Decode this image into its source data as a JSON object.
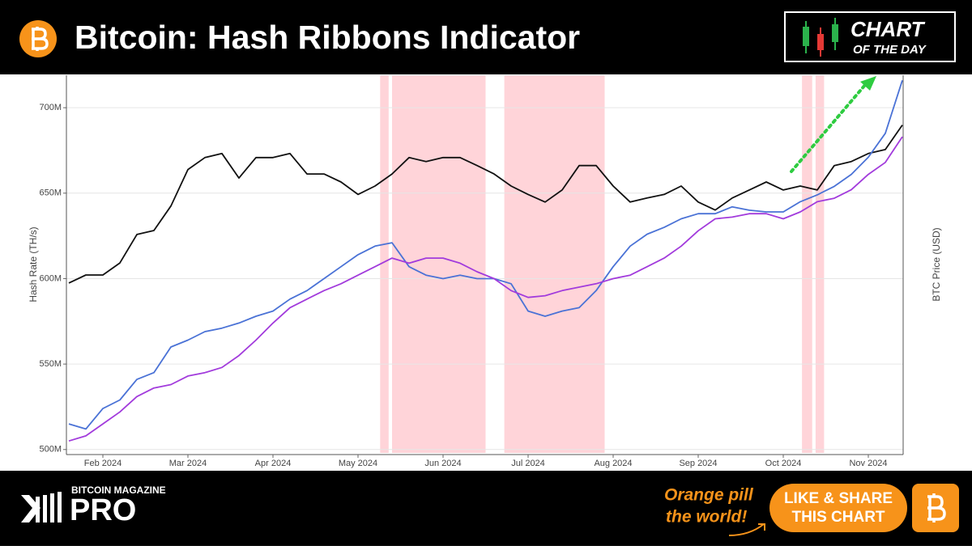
{
  "header": {
    "title": "Bitcoin: Hash Ribbons Indicator",
    "badge_line1": "CHART",
    "badge_line2": "OF THE DAY"
  },
  "footer": {
    "brand_small": "BITCOIN MAGAZINE",
    "brand_large": "PRO",
    "slogan_line1": "Orange pill",
    "slogan_line2": "the world!",
    "button_line1": "LIKE & SHARE",
    "button_line2": "THIS CHART"
  },
  "chart_data": {
    "type": "line",
    "y_label": "Hash Rate (TH/s)",
    "y2_label": "BTC Price (USD)",
    "categories": [
      null,
      null,
      "Feb 2024",
      null,
      null,
      null,
      null,
      "Mar 2024",
      null,
      null,
      null,
      null,
      "Apr 2024",
      null,
      null,
      null,
      null,
      "May 2024",
      null,
      null,
      null,
      null,
      "Jun 2024",
      null,
      null,
      null,
      null,
      "Jul 2024",
      null,
      null,
      null,
      null,
      "Aug 2024",
      null,
      null,
      null,
      null,
      "Sep 2024",
      null,
      null,
      null,
      null,
      "Oct 2024",
      null,
      null,
      null,
      null,
      "Nov 2024",
      null,
      null
    ],
    "series": [
      {
        "color": "#111111",
        "axis": "y2",
        "values": [
          43000,
          44800,
          44800,
          47500,
          53900,
          54800,
          60300,
          68500,
          71200,
          72100,
          66600,
          71200,
          71200,
          72100,
          67500,
          67500,
          65700,
          62900,
          64800,
          67500,
          71200,
          70300,
          71200,
          71200,
          69400,
          67500,
          64800,
          62900,
          61200,
          63900,
          69400,
          69400,
          64800,
          61200,
          62100,
          62900,
          64800,
          61200,
          59400,
          62100,
          63900,
          65700,
          63900,
          64800,
          63900,
          69400,
          70300,
          72100,
          73000,
          78500
        ]
      },
      {
        "color": "#4a72d6",
        "values": [
          515000000.0,
          512000000.0,
          524000000.0,
          529000000.0,
          541000000.0,
          545000000.0,
          560000000.0,
          564000000.0,
          569000000.0,
          571000000.0,
          574000000.0,
          578000000.0,
          581000000.0,
          588000000.0,
          593000000.0,
          600000000.0,
          607000000.0,
          614000000.0,
          619000000.0,
          621000000.0,
          607000000.0,
          602000000.0,
          600000000.0,
          602000000.0,
          600000000.0,
          600000000.0,
          597000000.0,
          581000000.0,
          578000000.0,
          581000000.0,
          583000000.0,
          593000000.0,
          607000000.0,
          619000000.0,
          626000000.0,
          630000000.0,
          635000000.0,
          638000000.0,
          638000000.0,
          642000000.0,
          640000000.0,
          639000000.0,
          639000000.0,
          645000000.0,
          649000000.0,
          654000000.0,
          661000000.0,
          671000000.0,
          685000000.0,
          716000000.0
        ]
      },
      {
        "color": "#a23bdc",
        "values": [
          505000000.0,
          508000000.0,
          515000000.0,
          522000000.0,
          531000000.0,
          536000000.0,
          538000000.0,
          543000000.0,
          545000000.0,
          548000000.0,
          555000000.0,
          564000000.0,
          574000000.0,
          583000000.0,
          588000000.0,
          593000000.0,
          597000000.0,
          602000000.0,
          607000000.0,
          612000000.0,
          609000000.0,
          612000000.0,
          612000000.0,
          609000000.0,
          604000000.0,
          600000000.0,
          593000000.0,
          589000000.0,
          590000000.0,
          593000000.0,
          595000000.0,
          597000000.0,
          600000000.0,
          602000000.0,
          607000000.0,
          612000000.0,
          619000000.0,
          628000000.0,
          635000000.0,
          636000000.0,
          638000000.0,
          638000000.0,
          635000000.0,
          639000000.0,
          645000000.0,
          647000000.0,
          652000000.0,
          661000000.0,
          668000000.0,
          683000000.0
        ]
      }
    ],
    "highlight_ranges": [
      [
        18.3,
        18.8
      ],
      [
        19.0,
        24.5
      ],
      [
        25.6,
        31.5
      ],
      [
        43.1,
        43.7
      ],
      [
        43.9,
        44.4
      ]
    ],
    "highlight_color": "#ffccd2",
    "ylim": [
      498000000.0,
      719000000.0
    ],
    "yticks": [
      {
        "value": 500000000.0,
        "label": "500M"
      },
      {
        "value": 550000000.0,
        "label": "550M"
      },
      {
        "value": 600000000.0,
        "label": "600M"
      },
      {
        "value": 650000000.0,
        "label": "650M"
      },
      {
        "value": 700000000.0,
        "label": "700M"
      }
    ],
    "y2lim": [
      4800,
      89700
    ],
    "grid": true
  }
}
